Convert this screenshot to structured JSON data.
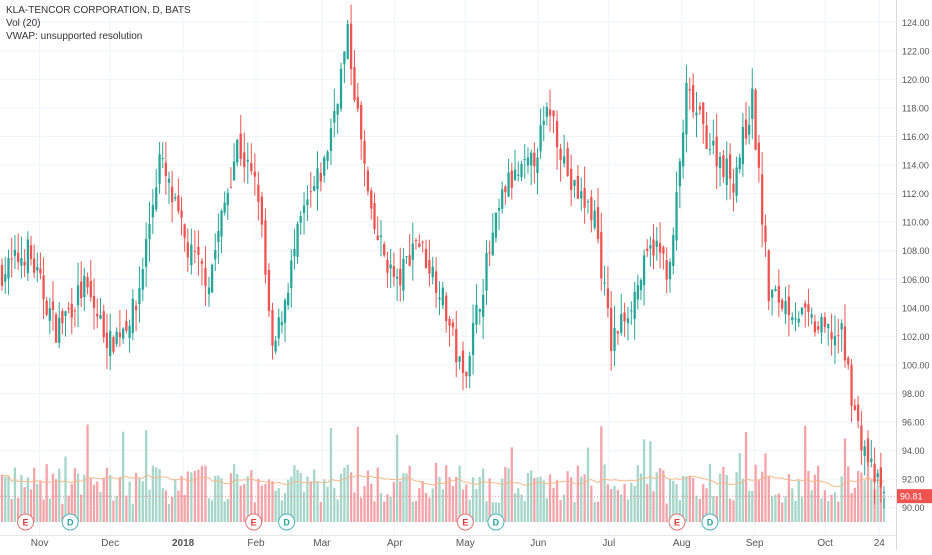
{
  "legend": {
    "title": "KLA-TENCOR CORPORATION, D, BATS",
    "volume": "Vol (20)",
    "vwap": "VWAP: unsupported resolution"
  },
  "colors": {
    "up": "#26a69a",
    "down": "#ef5350",
    "up_volume": "#a5d6c9",
    "down_volume": "#f5a3a8",
    "grid": "#f0f3fa",
    "axis_text": "#555555",
    "last_price_badge": "#ef5350",
    "volume_ma": "#f6b98a"
  },
  "last_price": "90.81",
  "chart_data": {
    "type": "candlestick",
    "title": "KLA-TENCOR CORPORATION, D, BATS",
    "y_axis": {
      "position": "right",
      "range": [
        89,
        125
      ],
      "ticks": [
        "90.00",
        "92.00",
        "94.00",
        "96.00",
        "98.00",
        "100.00",
        "102.00",
        "104.00",
        "106.00",
        "108.00",
        "110.00",
        "112.00",
        "114.00",
        "116.00",
        "118.00",
        "120.00",
        "122.00",
        "124.00"
      ]
    },
    "x_axis": {
      "range": [
        "2017-10-16",
        "2018-10-26"
      ],
      "ticks": [
        {
          "label": "Nov",
          "date": "2017-11-01",
          "bold": false
        },
        {
          "label": "Dec",
          "date": "2017-12-01",
          "bold": false
        },
        {
          "label": "2018",
          "date": "2018-01-01",
          "bold": true
        },
        {
          "label": "Feb",
          "date": "2018-02-01",
          "bold": false
        },
        {
          "label": "Mar",
          "date": "2018-03-01",
          "bold": false
        },
        {
          "label": "Apr",
          "date": "2018-04-01",
          "bold": false
        },
        {
          "label": "May",
          "date": "2018-05-01",
          "bold": false
        },
        {
          "label": "Jun",
          "date": "2018-06-01",
          "bold": false
        },
        {
          "label": "Jul",
          "date": "2018-07-01",
          "bold": false
        },
        {
          "label": "Aug",
          "date": "2018-08-01",
          "bold": false
        },
        {
          "label": "Sep",
          "date": "2018-09-01",
          "bold": false
        },
        {
          "label": "Oct",
          "date": "2018-10-01",
          "bold": false
        },
        {
          "label": "24",
          "date": "2018-10-24",
          "bold": false
        }
      ]
    },
    "series": [
      {
        "name": "Price",
        "role": "ohlc",
        "points": [
          {
            "x": "2017-10-16",
            "y": 106.5
          },
          {
            "x": "2017-10-27",
            "y": 108.0
          },
          {
            "x": "2017-11-08",
            "y": 102.5
          },
          {
            "x": "2017-11-20",
            "y": 105.5
          },
          {
            "x": "2017-12-01",
            "y": 101.5
          },
          {
            "x": "2017-12-12",
            "y": 104.0
          },
          {
            "x": "2017-12-22",
            "y": 114.5
          },
          {
            "x": "2018-01-03",
            "y": 108.0
          },
          {
            "x": "2018-01-12",
            "y": 106.0
          },
          {
            "x": "2018-01-24",
            "y": 115.5
          },
          {
            "x": "2018-02-02",
            "y": 112.0
          },
          {
            "x": "2018-02-08",
            "y": 100.5
          },
          {
            "x": "2018-02-20",
            "y": 110.0
          },
          {
            "x": "2018-03-02",
            "y": 114.0
          },
          {
            "x": "2018-03-12",
            "y": 123.0
          },
          {
            "x": "2018-03-22",
            "y": 110.0
          },
          {
            "x": "2018-04-02",
            "y": 105.5
          },
          {
            "x": "2018-04-10",
            "y": 109.0
          },
          {
            "x": "2018-04-20",
            "y": 105.5
          },
          {
            "x": "2018-04-30",
            "y": 99.0
          },
          {
            "x": "2018-05-10",
            "y": 107.0
          },
          {
            "x": "2018-05-18",
            "y": 112.5
          },
          {
            "x": "2018-05-29",
            "y": 114.0
          },
          {
            "x": "2018-06-06",
            "y": 118.0
          },
          {
            "x": "2018-06-15",
            "y": 112.5
          },
          {
            "x": "2018-06-25",
            "y": 110.5
          },
          {
            "x": "2018-07-02",
            "y": 101.5
          },
          {
            "x": "2018-07-12",
            "y": 105.0
          },
          {
            "x": "2018-07-20",
            "y": 108.5
          },
          {
            "x": "2018-07-27",
            "y": 106.5
          },
          {
            "x": "2018-08-03",
            "y": 119.0
          },
          {
            "x": "2018-08-13",
            "y": 115.5
          },
          {
            "x": "2018-08-23",
            "y": 113.0
          },
          {
            "x": "2018-08-31",
            "y": 118.5
          },
          {
            "x": "2018-09-07",
            "y": 105.0
          },
          {
            "x": "2018-09-17",
            "y": 104.0
          },
          {
            "x": "2018-09-28",
            "y": 102.5
          },
          {
            "x": "2018-10-08",
            "y": 102.0
          },
          {
            "x": "2018-10-15",
            "y": 95.5
          },
          {
            "x": "2018-10-22",
            "y": 92.0
          },
          {
            "x": "2018-10-26",
            "y": 90.81
          }
        ]
      },
      {
        "name": "Vol (20)",
        "role": "volume",
        "points": []
      }
    ],
    "markers": [
      {
        "label": "E",
        "date": "2017-10-26",
        "kind": "earnings"
      },
      {
        "label": "D",
        "date": "2017-11-14",
        "kind": "dividend"
      },
      {
        "label": "E",
        "date": "2018-01-31",
        "kind": "earnings"
      },
      {
        "label": "D",
        "date": "2018-02-14",
        "kind": "dividend"
      },
      {
        "label": "E",
        "date": "2018-05-01",
        "kind": "earnings"
      },
      {
        "label": "D",
        "date": "2018-05-14",
        "kind": "dividend"
      },
      {
        "label": "E",
        "date": "2018-07-30",
        "kind": "earnings"
      },
      {
        "label": "D",
        "date": "2018-08-13",
        "kind": "dividend"
      }
    ],
    "grid": true
  }
}
